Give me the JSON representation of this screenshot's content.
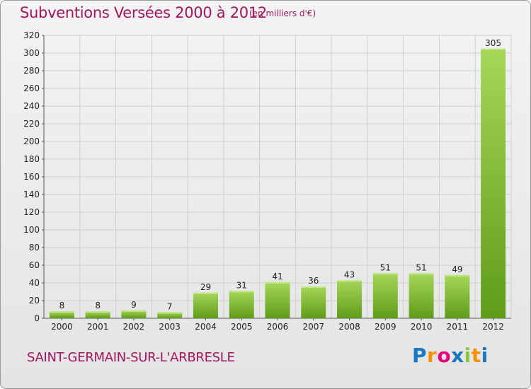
{
  "header": {
    "title": "Subventions Versées 2000 à 2012",
    "unit": "(en milliers d'€)"
  },
  "footer": {
    "commune": "SAINT-GERMAIN-SUR-L'ARBRESLE",
    "logo_letters": [
      "P",
      "r",
      "o",
      "x",
      "i",
      "t",
      "i"
    ],
    "logo_colors": [
      "#1a78c2",
      "#f39200",
      "#e6007e",
      "#1a78c2",
      "#8dc63f",
      "#f39200",
      "#1a78c2"
    ]
  },
  "colors": {
    "bar_top": "#a6d65a",
    "bar_bottom": "#62a01a",
    "grid": "#cfcfcf",
    "title": "#a0155e"
  },
  "chart_data": {
    "type": "bar",
    "categories": [
      "2000",
      "2001",
      "2002",
      "2003",
      "2004",
      "2005",
      "2006",
      "2007",
      "2008",
      "2009",
      "2010",
      "2011",
      "2012"
    ],
    "values": [
      8,
      8,
      9,
      7,
      29,
      31,
      41,
      36,
      43,
      51,
      51,
      49,
      305
    ],
    "title": "Subventions Versées 2000 à 2012",
    "ylabel": "(en milliers d'€)",
    "ylim": [
      0,
      320
    ],
    "yticks": [
      0,
      20,
      40,
      60,
      80,
      100,
      120,
      140,
      160,
      180,
      200,
      220,
      240,
      260,
      280,
      300,
      320
    ],
    "grid": true
  }
}
